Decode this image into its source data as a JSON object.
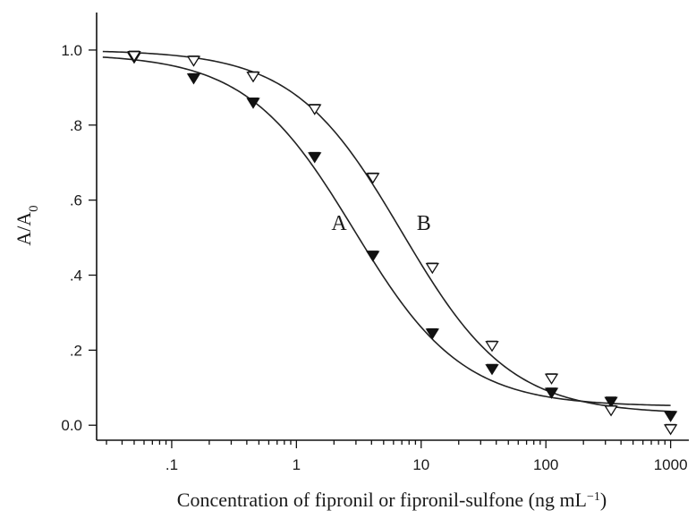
{
  "chart_data": {
    "type": "scatter",
    "xscale": "log",
    "xlim": [
      0.025,
      1400
    ],
    "ylim": [
      -0.04,
      1.1
    ],
    "xticks": [
      {
        "value": 0.1,
        "label": ".1"
      },
      {
        "value": 1,
        "label": "1"
      },
      {
        "value": 10,
        "label": "10"
      },
      {
        "value": 100,
        "label": "100"
      },
      {
        "value": 1000,
        "label": "1000"
      }
    ],
    "yticks": [
      {
        "value": 0.0,
        "label": "0.0"
      },
      {
        "value": 0.2,
        "label": ".2"
      },
      {
        "value": 0.4,
        "label": ".4"
      },
      {
        "value": 0.6,
        "label": ".6"
      },
      {
        "value": 0.8,
        "label": ".8"
      },
      {
        "value": 1.0,
        "label": "1.0"
      }
    ],
    "xlabel": {
      "text": "Concentration of fipronil or fipronil-sulfone (ng mL",
      "sup": "−1",
      "suffix": ")"
    },
    "ylabel": {
      "text": "A/A",
      "sub": "0"
    },
    "series": [
      {
        "name": "A",
        "marker": "filled-triangle-down",
        "x": [
          0.05,
          0.15,
          0.45,
          1.4,
          4.1,
          12.3,
          37,
          111,
          333,
          1000
        ],
        "y": [
          0.98,
          0.925,
          0.86,
          0.715,
          0.452,
          0.245,
          0.15,
          0.087,
          0.063,
          0.025
        ],
        "fit": {
          "top": 0.99,
          "bottom": 0.05,
          "ic50": 2.9,
          "slope": 1.0
        }
      },
      {
        "name": "B",
        "marker": "open-triangle-down",
        "x": [
          0.05,
          0.15,
          0.45,
          1.4,
          4.1,
          12.3,
          37,
          111,
          333,
          1000
        ],
        "y": [
          0.985,
          0.972,
          0.93,
          0.843,
          0.66,
          0.42,
          0.212,
          0.125,
          0.04,
          -0.01
        ],
        "fit": {
          "top": 1.0,
          "bottom": 0.03,
          "ic50": 7.0,
          "slope": 1.0
        }
      }
    ],
    "annotations": [
      {
        "text": "A",
        "x": 2.2,
        "y": 0.54
      },
      {
        "text": "B",
        "x": 10.5,
        "y": 0.54
      }
    ]
  }
}
